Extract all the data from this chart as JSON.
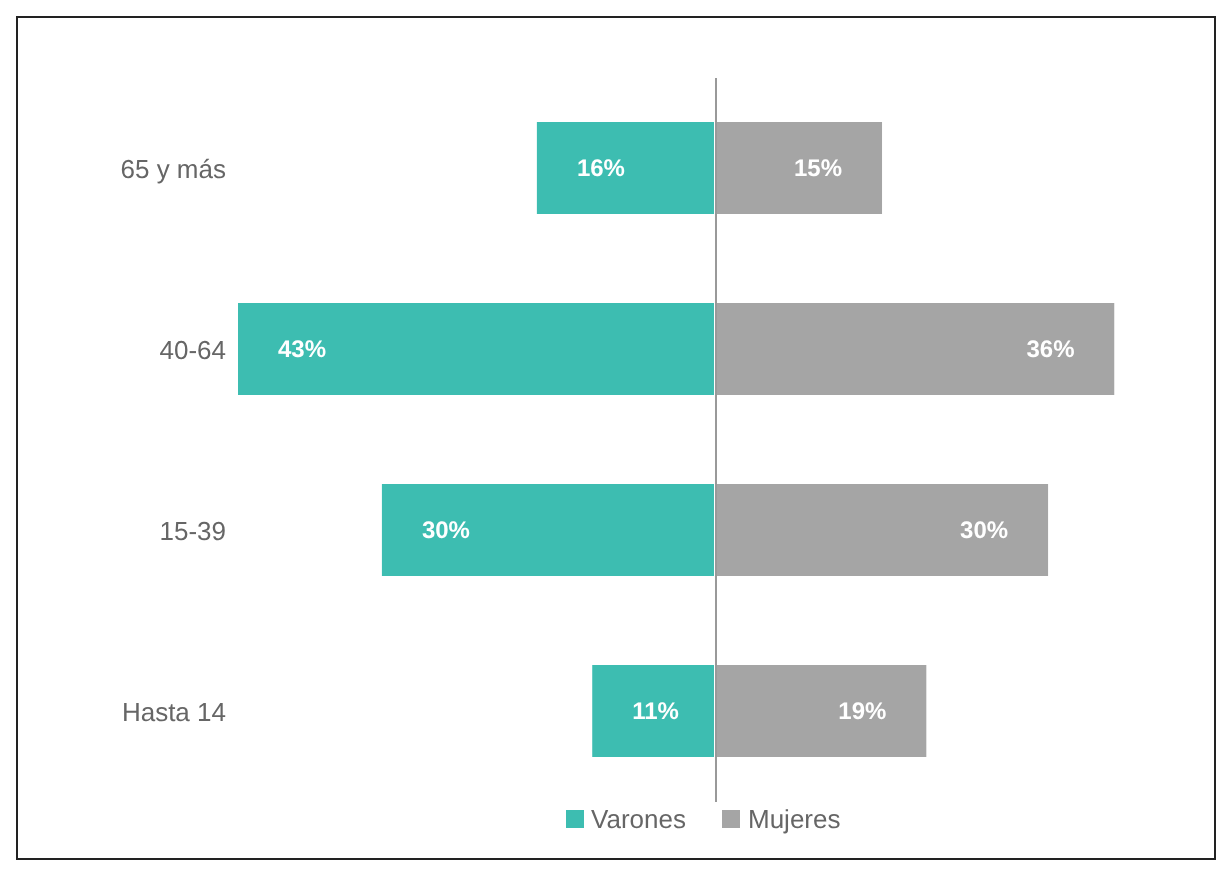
{
  "chart_data": [
    {
      "type": "bar",
      "orientation": "horizontal",
      "categories": [
        "65 y más",
        "40-64",
        "15-39",
        "Hasta 14"
      ],
      "xlim": [
        43,
        0
      ],
      "series": [
        {
          "name": "Varones",
          "color": "#3dbdb1",
          "values": [
            16,
            43,
            30,
            11
          ],
          "value_labels": [
            "16%",
            "43%",
            "30%",
            "11%"
          ]
        }
      ],
      "legend": "bottom right",
      "tick_labels": "y"
    },
    {
      "type": "bar",
      "orientation": "horizontal",
      "categories": [
        null,
        null,
        null,
        null
      ],
      "series": [
        {
          "name": "Mujeres",
          "color": "#a5a5a5",
          "values": [
            15,
            36,
            30,
            19
          ],
          "value_labels": [
            "15%",
            "36%",
            "30%",
            "19%"
          ]
        }
      ],
      "legend": "bottom left",
      "tick_labels": false
    }
  ]
}
